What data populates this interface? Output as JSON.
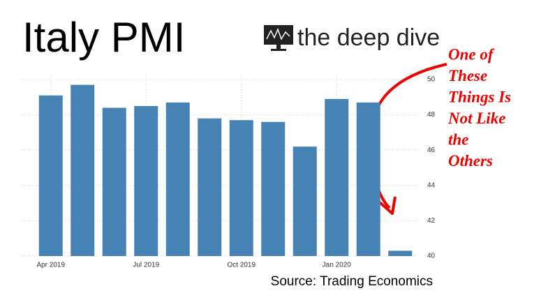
{
  "chart_data": {
    "type": "bar",
    "title": "Italy PMI",
    "logo_text": "the deep dive",
    "source": "Source: Trading Economics",
    "annotation": [
      "One of",
      "These",
      "Things Is",
      "Not Like",
      "the",
      "Others"
    ],
    "categories": [
      "Apr 2019",
      null,
      null,
      "Jul 2019",
      null,
      null,
      "Oct 2019",
      null,
      null,
      "Jan 2020",
      null,
      null
    ],
    "values": [
      49.1,
      49.7,
      48.4,
      48.5,
      48.7,
      47.8,
      47.7,
      47.6,
      46.2,
      48.9,
      48.7,
      40.3
    ],
    "color": "#4682b4",
    "ylim": [
      40,
      50
    ],
    "yticks": [
      40,
      42,
      44,
      46,
      48,
      50
    ],
    "grid": true,
    "y_axis_side": "right"
  }
}
